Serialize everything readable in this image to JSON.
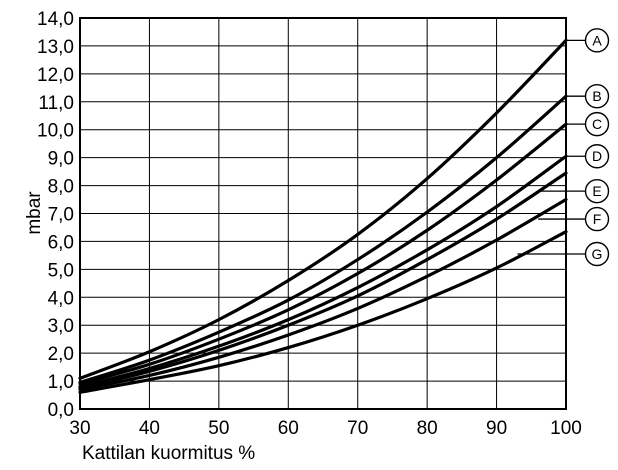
{
  "chart_data": {
    "type": "line",
    "xlabel": "Kattilan kuormitus %",
    "ylabel": "mbar",
    "xlim": [
      30,
      100
    ],
    "ylim": [
      0,
      14
    ],
    "grid": true,
    "x_ticks": [
      30,
      40,
      50,
      60,
      70,
      80,
      90,
      100
    ],
    "x_tick_labels": [
      "30",
      "40",
      "50",
      "60",
      "70",
      "80",
      "90",
      "100"
    ],
    "y_ticks": [
      0,
      1,
      2,
      3,
      4,
      5,
      6,
      7,
      8,
      9,
      10,
      11,
      12,
      13,
      14
    ],
    "y_tick_labels": [
      "0,0",
      "1,0",
      "2,0",
      "3,0",
      "4,0",
      "5,0",
      "6,0",
      "7,0",
      "8,0",
      "9,0",
      "10,0",
      "11,0",
      "12,0",
      "13,0",
      "14,0"
    ],
    "x": [
      30,
      40,
      50,
      60,
      70,
      80,
      90,
      100
    ],
    "series": [
      {
        "name": "A",
        "values": [
          1.1,
          2.05,
          3.2,
          4.6,
          6.25,
          8.25,
          10.6,
          13.2
        ],
        "label_x": 100,
        "label_y": 13.2
      },
      {
        "name": "B",
        "values": [
          0.95,
          1.75,
          2.75,
          3.9,
          5.35,
          7.05,
          9.0,
          11.2
        ],
        "label_x": 100,
        "label_y": 11.2
      },
      {
        "name": "C",
        "values": [
          0.9,
          1.6,
          2.5,
          3.55,
          4.85,
          6.4,
          8.2,
          10.2
        ],
        "label_x": 100,
        "label_y": 10.2
      },
      {
        "name": "D",
        "values": [
          0.8,
          1.45,
          2.25,
          3.2,
          4.35,
          5.7,
          7.25,
          9.05
        ],
        "label_x": 100,
        "label_y": 9.05
      },
      {
        "name": "E",
        "values": [
          0.75,
          1.35,
          2.1,
          3.0,
          4.05,
          5.35,
          6.8,
          8.45
        ],
        "label_x": 96,
        "label_y": 7.8
      },
      {
        "name": "F",
        "values": [
          0.7,
          1.2,
          1.85,
          2.65,
          3.6,
          4.75,
          6.05,
          7.5
        ],
        "label_x": 96,
        "label_y": 6.8
      },
      {
        "name": "G",
        "values": [
          0.6,
          1.05,
          1.55,
          2.2,
          3.0,
          3.95,
          5.05,
          6.35
        ],
        "label_x": 93,
        "label_y": 5.55
      }
    ]
  }
}
